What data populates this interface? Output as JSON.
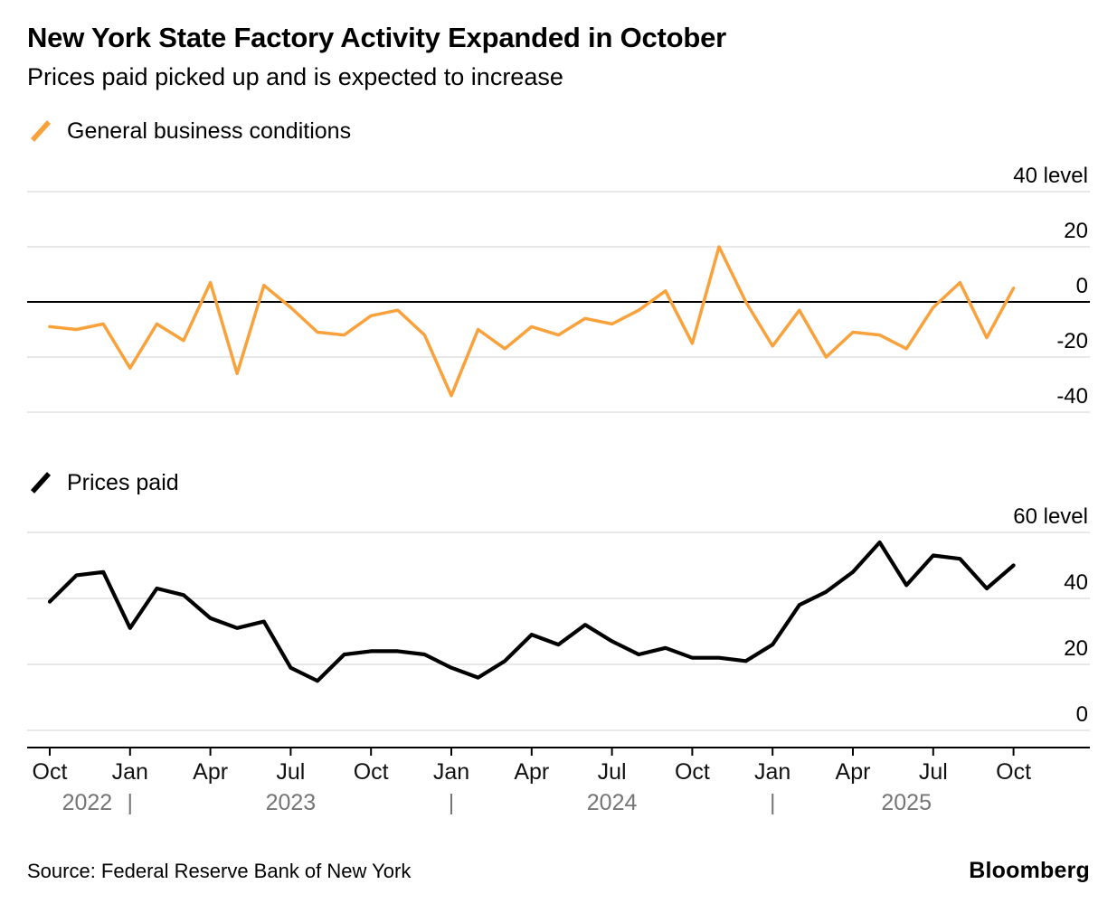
{
  "header": {
    "title": "New York State Factory Activity Expanded in October",
    "subtitle": "Prices paid picked up and is expected to increase"
  },
  "footer": {
    "source": "Source: Federal Reserve Bank of New York",
    "brand": "Bloomberg"
  },
  "colors": {
    "accent_orange": "#F9A13B",
    "line_black": "#000000",
    "grid": "#D2D2D2",
    "axis": "#000000",
    "tick_text": "#111111",
    "year_label": "#757575"
  },
  "months": [
    "Oct 2022",
    "Nov 2022",
    "Dec 2022",
    "Jan 2023",
    "Feb 2023",
    "Mar 2023",
    "Apr 2023",
    "May 2023",
    "Jun 2023",
    "Jul 2023",
    "Aug 2023",
    "Sep 2023",
    "Oct 2023",
    "Nov 2023",
    "Dec 2023",
    "Jan 2024",
    "Feb 2024",
    "Mar 2024",
    "Apr 2024",
    "May 2024",
    "Jun 2024",
    "Jul 2024",
    "Aug 2024",
    "Sep 2024",
    "Oct 2024",
    "Nov 2024",
    "Dec 2024",
    "Jan 2025",
    "Feb 2025",
    "Mar 2025",
    "Apr 2025",
    "May 2025",
    "Jun 2025",
    "Jul 2025",
    "Aug 2025",
    "Sep 2025",
    "Oct 2025"
  ],
  "chart_data": [
    {
      "type": "line",
      "name": "general-business-conditions",
      "title": "General business conditions",
      "color_key": "accent_orange",
      "x": [
        "Oct 2022",
        "Nov 2022",
        "Dec 2022",
        "Jan 2023",
        "Feb 2023",
        "Mar 2023",
        "Apr 2023",
        "May 2023",
        "Jun 2023",
        "Jul 2023",
        "Aug 2023",
        "Sep 2023",
        "Oct 2023",
        "Nov 2023",
        "Dec 2023",
        "Jan 2024",
        "Feb 2024",
        "Mar 2024",
        "Apr 2024",
        "May 2024",
        "Jun 2024",
        "Jul 2024",
        "Aug 2024",
        "Sep 2024",
        "Oct 2024",
        "Nov 2024",
        "Dec 2024",
        "Jan 2025",
        "Feb 2025",
        "Mar 2025",
        "Apr 2025",
        "May 2025",
        "Jun 2025",
        "Jul 2025",
        "Aug 2025",
        "Sep 2025",
        "Oct 2025"
      ],
      "values": [
        -9,
        -10,
        -8,
        -24,
        -8,
        -14,
        7,
        -26,
        6,
        -2,
        -11,
        -12,
        -5,
        -3,
        -12,
        -34,
        -10,
        -17,
        -9,
        -12,
        -6,
        -8,
        -3,
        4,
        -15,
        20,
        0,
        -16,
        -3,
        -20,
        -11,
        -12,
        -17,
        -2,
        7,
        -13,
        5
      ],
      "ylim": [
        -40,
        40
      ],
      "yticks": [
        40,
        20,
        0,
        -20,
        -40
      ],
      "ytick_labels": [
        "40 level",
        "20",
        "0",
        "-20",
        "-40"
      ],
      "zero_line": true,
      "grid": true,
      "legend_position": "top-left"
    },
    {
      "type": "line",
      "name": "prices-paid",
      "title": "Prices paid",
      "color_key": "line_black",
      "x": [
        "Oct 2022",
        "Nov 2022",
        "Dec 2022",
        "Jan 2023",
        "Feb 2023",
        "Mar 2023",
        "Apr 2023",
        "May 2023",
        "Jun 2023",
        "Jul 2023",
        "Aug 2023",
        "Sep 2023",
        "Oct 2023",
        "Nov 2023",
        "Dec 2023",
        "Jan 2024",
        "Feb 2024",
        "Mar 2024",
        "Apr 2024",
        "May 2024",
        "Jun 2024",
        "Jul 2024",
        "Aug 2024",
        "Sep 2024",
        "Oct 2024",
        "Nov 2024",
        "Dec 2024",
        "Jan 2025",
        "Feb 2025",
        "Mar 2025",
        "Apr 2025",
        "May 2025",
        "Jun 2025",
        "Jul 2025",
        "Aug 2025",
        "Sep 2025",
        "Oct 2025"
      ],
      "values": [
        39,
        47,
        48,
        31,
        43,
        41,
        34,
        31,
        33,
        19,
        15,
        23,
        24,
        24,
        23,
        19,
        16,
        21,
        29,
        26,
        32,
        27,
        23,
        25,
        22,
        22,
        21,
        26,
        38,
        42,
        48,
        57,
        44,
        53,
        52,
        43,
        50
      ],
      "ylim": [
        0,
        60
      ],
      "yticks": [
        60,
        40,
        20,
        0
      ],
      "ytick_labels": [
        "60 level",
        "40",
        "20",
        "0"
      ],
      "zero_line": false,
      "grid": true,
      "legend_position": "top-left"
    }
  ],
  "x_axis": {
    "tick_labels": [
      "Oct",
      "Jan",
      "Apr",
      "Jul",
      "Oct",
      "Jan",
      "Apr",
      "Jul",
      "Oct",
      "Jan",
      "Apr",
      "Jul",
      "Oct"
    ],
    "tick_indices": [
      0,
      3,
      6,
      9,
      12,
      15,
      18,
      21,
      24,
      27,
      30,
      33,
      36
    ],
    "years": [
      {
        "label": "2022",
        "center_index": 1.4
      },
      {
        "label": "2023",
        "center_index": 9
      },
      {
        "label": "2024",
        "center_index": 21
      },
      {
        "label": "2025",
        "center_index": 32
      }
    ],
    "separator": "|",
    "separator_indices": [
      3,
      15,
      27
    ]
  }
}
